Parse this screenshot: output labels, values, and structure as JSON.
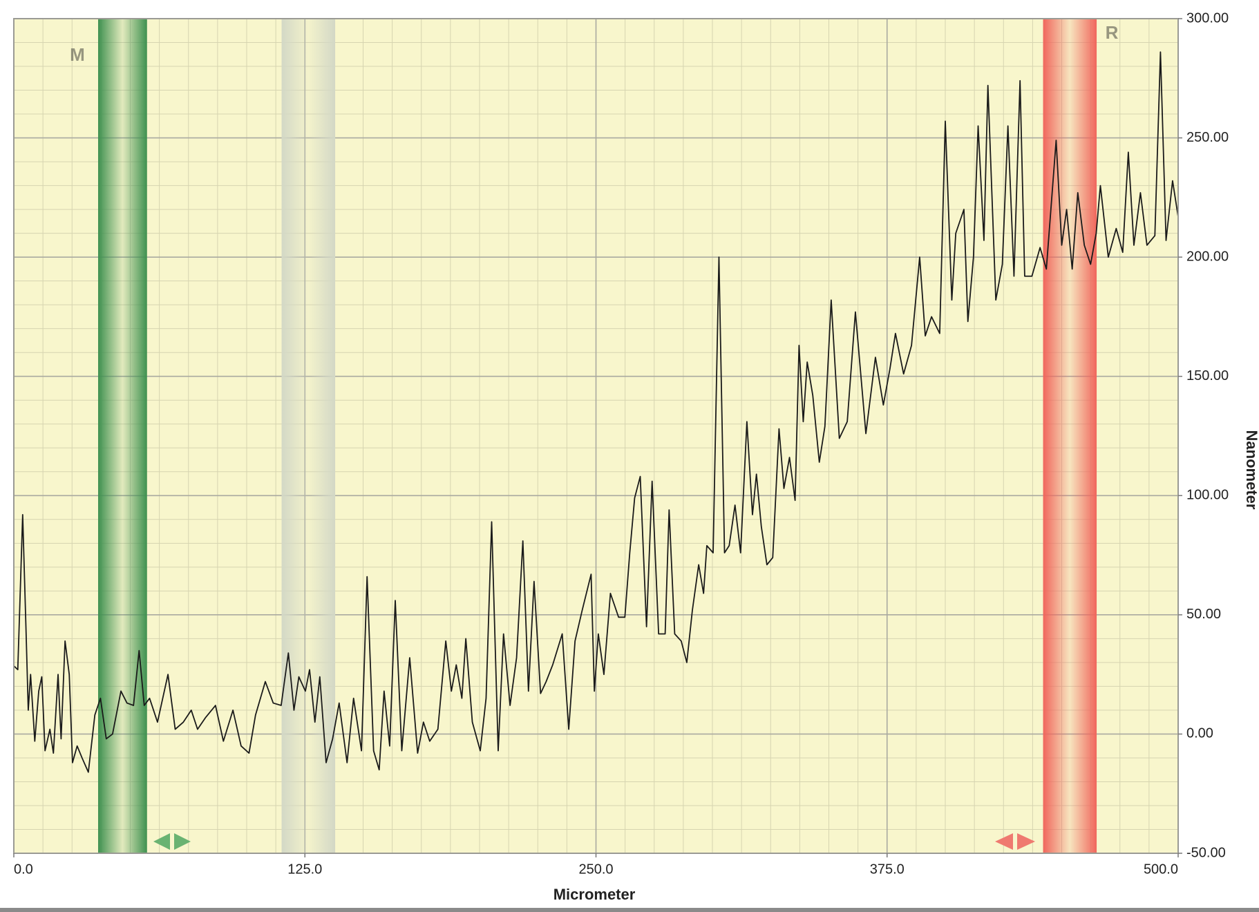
{
  "chart_data": {
    "type": "line",
    "x_label": "Micrometer",
    "y_label": "Nanometer",
    "y_axis_side": "right",
    "background": "#f8f6cc",
    "color": "#1a1a1a",
    "xlim": [
      0,
      500
    ],
    "xticks": [
      {
        "value": 0,
        "label": "0.0"
      },
      {
        "value": 125,
        "label": "125.0"
      },
      {
        "value": 250,
        "label": "250.0"
      },
      {
        "value": 375,
        "label": "375.0"
      },
      {
        "value": 500,
        "label": "500.0"
      }
    ],
    "ylim": [
      -50,
      300
    ],
    "yticks": [
      {
        "value": -50,
        "label": "-50.00"
      },
      {
        "value": 0,
        "label": "0.00"
      },
      {
        "value": 50,
        "label": "50.00"
      },
      {
        "value": 100,
        "label": "100.00"
      },
      {
        "value": 150,
        "label": "150.00"
      },
      {
        "value": 200,
        "label": "200.00"
      },
      {
        "value": 250,
        "label": "250.00"
      },
      {
        "value": 300,
        "label": "300.00"
      }
    ],
    "grid": true,
    "regions": [
      {
        "label": "M",
        "label_side": "left",
        "start": 36.2,
        "end": 57.2,
        "color": "#3f9150"
      },
      {
        "start": 115,
        "end": 138,
        "color": "#d3d8c6"
      },
      {
        "label": "R",
        "label_side": "right",
        "start": 442,
        "end": 465,
        "color": "#f0665c"
      }
    ],
    "x": [
      0,
      1.7,
      3.8,
      5.2,
      6.2,
      7.2,
      9,
      10.7,
      12,
      13.4,
      15.5,
      17,
      19,
      20.3,
      22,
      23.8,
      25.2,
      27.2,
      29.3,
      32,
      34.8,
      37.2,
      39.7,
      42.4,
      46,
      48.6,
      51.4,
      53.8,
      56,
      58.3,
      61.7,
      66.2,
      69.3,
      72.8,
      76.2,
      78.9,
      82.4,
      86.6,
      90,
      94.1,
      97.6,
      101,
      103.8,
      108,
      111.4,
      114.8,
      117.9,
      120.3,
      122.4,
      125.2,
      127,
      129.3,
      131.4,
      134.1,
      136.9,
      139.7,
      143.1,
      145.9,
      149.3,
      151.7,
      154.5,
      156.9,
      159,
      161.4,
      163.8,
      166.6,
      170,
      173.4,
      175.9,
      178.6,
      182.1,
      185.5,
      187.9,
      190,
      192.4,
      194.1,
      196.9,
      200.3,
      202.8,
      205.2,
      208,
      210.3,
      213.1,
      215.9,
      218.6,
      221,
      223.4,
      226.2,
      228.6,
      231.4,
      235.5,
      238.3,
      241,
      244.1,
      247.9,
      249.3,
      251,
      253.4,
      256.2,
      259.7,
      262.4,
      264.5,
      266.6,
      269,
      271.7,
      274.1,
      276.9,
      279.7,
      281.4,
      283.8,
      286.6,
      289,
      291.4,
      294.1,
      296.2,
      297.6,
      300.3,
      302.8,
      305.2,
      307.2,
      309.7,
      312.1,
      314.8,
      317.2,
      318.9,
      321,
      323.4,
      325.9,
      328.6,
      330.7,
      333.1,
      335.5,
      337.2,
      339,
      340.7,
      343.1,
      345.9,
      348.3,
      351,
      354.5,
      357.9,
      361.4,
      365.9,
      370,
      373.4,
      376.2,
      378.6,
      382.1,
      385.5,
      389,
      391.4,
      394.1,
      397.6,
      400,
      402.8,
      404.5,
      408,
      409.7,
      412.1,
      414.1,
      416.6,
      418.3,
      421.7,
      424.5,
      426.9,
      429.5,
      432.1,
      434.1,
      437.2,
      440.7,
      443.4,
      447.6,
      450,
      452.1,
      454.5,
      456.9,
      459.7,
      462.4,
      464.8,
      466.6,
      470,
      473.4,
      476.2,
      478.6,
      481,
      483.8,
      486.6,
      490,
      492.4,
      494.8,
      497.6,
      500
    ],
    "values": [
      28.6,
      27,
      92,
      45,
      10,
      25,
      -3,
      18,
      24,
      -7,
      2,
      -8,
      25,
      -2,
      39,
      25,
      -12,
      -5,
      -10,
      -16,
      8,
      15,
      -2,
      0,
      18,
      13,
      12,
      35,
      12,
      15,
      5,
      25,
      2,
      5,
      10,
      2,
      7,
      12,
      -3,
      10,
      -5,
      -8,
      8,
      22,
      13,
      12,
      34,
      10,
      24,
      18,
      27,
      5,
      24,
      -12,
      -2,
      13,
      -12,
      15,
      -7,
      66,
      -7,
      -15,
      18,
      -5,
      56,
      -7,
      32,
      -8,
      5,
      -3,
      2,
      39,
      18,
      29,
      15,
      40,
      5,
      -7,
      15,
      89,
      -7,
      42,
      12,
      32,
      81,
      18,
      64,
      17,
      22,
      29,
      42,
      2,
      39,
      52,
      67,
      18,
      42,
      25,
      59,
      49,
      49,
      76,
      99,
      108,
      45,
      106,
      42,
      42,
      94,
      42,
      39,
      30,
      52,
      71,
      59,
      79,
      76,
      200,
      76,
      79,
      96,
      76,
      131,
      92,
      109,
      87,
      71,
      74,
      128,
      103,
      116,
      98,
      163,
      131,
      156,
      142,
      114,
      129,
      182,
      124,
      131,
      177,
      126,
      158,
      138,
      153,
      168,
      151,
      163,
      200,
      167,
      175,
      168,
      257,
      182,
      210,
      220,
      173,
      200,
      255,
      207,
      272,
      182,
      197,
      255,
      192,
      274,
      192,
      192,
      204,
      195,
      249,
      205,
      220,
      195,
      227,
      205,
      197,
      210,
      230,
      200,
      212,
      202,
      244,
      205,
      227,
      205,
      209,
      286,
      207,
      232,
      217
    ]
  }
}
